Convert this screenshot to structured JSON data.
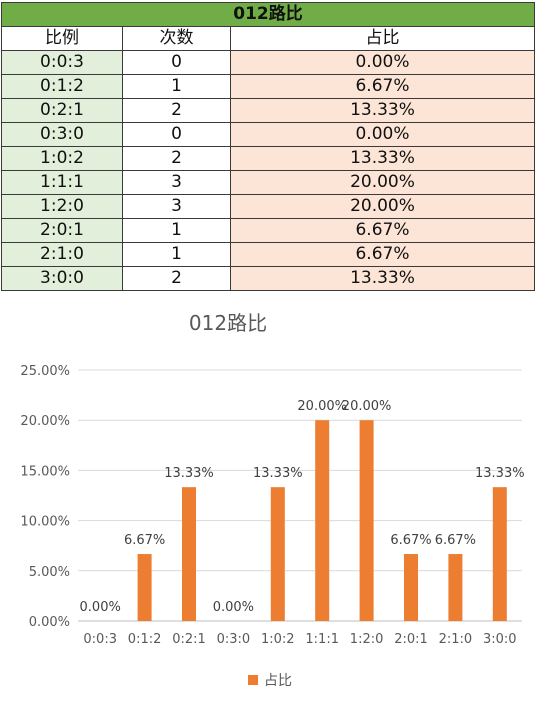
{
  "table": {
    "title": "012路比",
    "headers": [
      "比例",
      "次数",
      "占比"
    ],
    "rows": [
      {
        "ratio": "0:0:3",
        "count": "0",
        "pct": "0.00%"
      },
      {
        "ratio": "0:1:2",
        "count": "1",
        "pct": "6.67%"
      },
      {
        "ratio": "0:2:1",
        "count": "2",
        "pct": "13.33%"
      },
      {
        "ratio": "0:3:0",
        "count": "0",
        "pct": "0.00%"
      },
      {
        "ratio": "1:0:2",
        "count": "2",
        "pct": "13.33%"
      },
      {
        "ratio": "1:1:1",
        "count": "3",
        "pct": "20.00%"
      },
      {
        "ratio": "1:2:0",
        "count": "3",
        "pct": "20.00%"
      },
      {
        "ratio": "2:0:1",
        "count": "1",
        "pct": "6.67%"
      },
      {
        "ratio": "2:1:0",
        "count": "1",
        "pct": "6.67%"
      },
      {
        "ratio": "3:0:0",
        "count": "2",
        "pct": "13.33%"
      }
    ]
  },
  "colors": {
    "header_green": "#70ad47",
    "label_green": "#e2efda",
    "pct_pink": "#fce4d6",
    "bar_orange": "#ed7d31",
    "gridline": "#d9d9d9",
    "axis_text": "#595959"
  },
  "chart_data": {
    "type": "bar",
    "title": "012路比",
    "categories": [
      "0:0:3",
      "0:1:2",
      "0:2:1",
      "0:3:0",
      "1:0:2",
      "1:1:1",
      "1:2:0",
      "2:0:1",
      "2:1:0",
      "3:0:0"
    ],
    "series": [
      {
        "name": "占比",
        "values": [
          0.0,
          6.67,
          13.33,
          0.0,
          13.33,
          20.0,
          20.0,
          6.67,
          6.67,
          13.33
        ]
      }
    ],
    "data_labels": [
      "0.00%",
      "6.67%",
      "13.33%",
      "0.00%",
      "13.33%",
      "20.00%",
      "20.00%",
      "6.67%",
      "6.67%",
      "13.33%"
    ],
    "y_ticks": [
      "0.00%",
      "5.00%",
      "10.00%",
      "15.00%",
      "20.00%",
      "25.00%"
    ],
    "ylim": [
      0,
      25
    ],
    "y_unit": "percent",
    "grid": true,
    "legend": "bottom"
  }
}
